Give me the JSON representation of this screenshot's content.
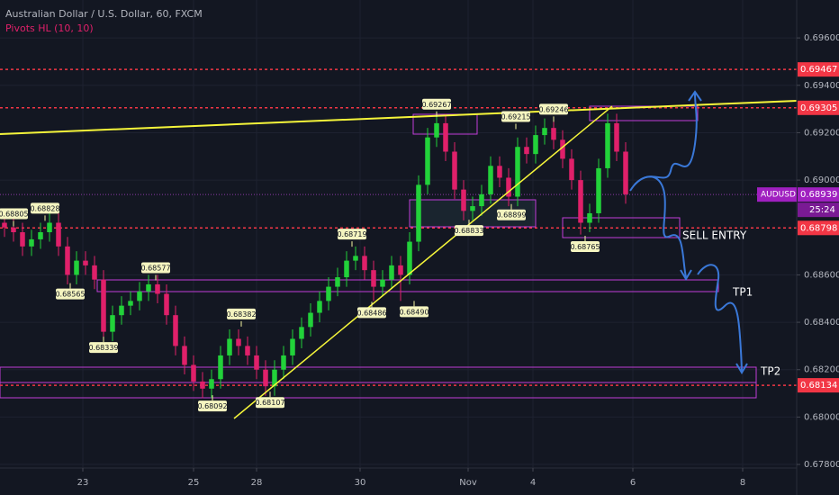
{
  "chart_data": {
    "type": "candlestick",
    "title": "Australian Dollar / U.S. Dollar, 60, FXCM",
    "subtitle": "Pivots HL (10, 10)",
    "up_color": "#22d23a",
    "down_color": "#e0206a",
    "grid": true,
    "xlim": [
      -0.5,
      88
    ],
    "ylim": [
      0.67785,
      0.6976
    ],
    "xticks": [
      {
        "value": 8.7,
        "label": "23"
      },
      {
        "value": 21,
        "label": "25"
      },
      {
        "value": 28,
        "label": "28"
      },
      {
        "value": 39.5,
        "label": "30"
      },
      {
        "value": 51.5,
        "label": "Nov"
      },
      {
        "value": 58.7,
        "label": "4"
      },
      {
        "value": 69.8,
        "label": "6"
      },
      {
        "value": 82,
        "label": "8"
      }
    ],
    "yticks": [
      {
        "value": 0.696,
        "label": "0.69600"
      },
      {
        "value": 0.694,
        "label": "0.69400"
      },
      {
        "value": 0.692,
        "label": "0.69200"
      },
      {
        "value": 0.69,
        "label": "0.69000"
      },
      {
        "value": 0.686,
        "label": "0.68600"
      },
      {
        "value": 0.684,
        "label": "0.68400"
      },
      {
        "value": 0.682,
        "label": "0.68200"
      },
      {
        "value": 0.68,
        "label": "0.68000"
      },
      {
        "value": 0.678,
        "label": "0.67800"
      }
    ],
    "candles": [
      [
        0.6882,
        0.6886,
        0.6876,
        0.688
      ],
      [
        0.688,
        0.6884,
        0.6874,
        0.6878
      ],
      [
        0.6878,
        0.6882,
        0.6868,
        0.6872
      ],
      [
        0.6872,
        0.6879,
        0.6868,
        0.6875
      ],
      [
        0.6875,
        0.6882,
        0.6871,
        0.6878
      ],
      [
        0.6878,
        0.6886,
        0.6874,
        0.6882
      ],
      [
        0.6882,
        0.6886,
        0.6868,
        0.6872
      ],
      [
        0.6872,
        0.6876,
        0.6856,
        0.686
      ],
      [
        0.686,
        0.687,
        0.6856,
        0.6866
      ],
      [
        0.6866,
        0.687,
        0.686,
        0.6864
      ],
      [
        0.6864,
        0.6868,
        0.6854,
        0.6858
      ],
      [
        0.6858,
        0.6862,
        0.6832,
        0.6836
      ],
      [
        0.6836,
        0.6847,
        0.6832,
        0.6843
      ],
      [
        0.6843,
        0.6851,
        0.6839,
        0.6847
      ],
      [
        0.6847,
        0.6853,
        0.6843,
        0.6849
      ],
      [
        0.6849,
        0.6857,
        0.6845,
        0.6853
      ],
      [
        0.6853,
        0.686,
        0.6849,
        0.6856
      ],
      [
        0.6856,
        0.686,
        0.6848,
        0.6852
      ],
      [
        0.6852,
        0.6856,
        0.6839,
        0.6843
      ],
      [
        0.6843,
        0.6847,
        0.6826,
        0.683
      ],
      [
        0.683,
        0.6834,
        0.6818,
        0.6822
      ],
      [
        0.6822,
        0.6826,
        0.6811,
        0.6815
      ],
      [
        0.6815,
        0.6819,
        0.6808,
        0.6812
      ],
      [
        0.6812,
        0.682,
        0.6808,
        0.6816
      ],
      [
        0.6816,
        0.683,
        0.6812,
        0.6826
      ],
      [
        0.6826,
        0.6837,
        0.6822,
        0.6833
      ],
      [
        0.6833,
        0.6837,
        0.6826,
        0.683
      ],
      [
        0.683,
        0.6834,
        0.6822,
        0.6826
      ],
      [
        0.6826,
        0.683,
        0.6816,
        0.682
      ],
      [
        0.682,
        0.6824,
        0.6809,
        0.6813
      ],
      [
        0.6813,
        0.6824,
        0.6809,
        0.682
      ],
      [
        0.682,
        0.683,
        0.6816,
        0.6826
      ],
      [
        0.6826,
        0.6837,
        0.6822,
        0.6833
      ],
      [
        0.6833,
        0.6842,
        0.6829,
        0.6838
      ],
      [
        0.6838,
        0.6848,
        0.6834,
        0.6844
      ],
      [
        0.6844,
        0.6853,
        0.684,
        0.6849
      ],
      [
        0.6849,
        0.6859,
        0.6845,
        0.6855
      ],
      [
        0.6855,
        0.6863,
        0.6851,
        0.6859
      ],
      [
        0.6859,
        0.687,
        0.6855,
        0.6866
      ],
      [
        0.6866,
        0.6872,
        0.6862,
        0.6868
      ],
      [
        0.6868,
        0.6872,
        0.6858,
        0.6862
      ],
      [
        0.6862,
        0.6866,
        0.6849,
        0.6855
      ],
      [
        0.6855,
        0.6862,
        0.6851,
        0.6858
      ],
      [
        0.6858,
        0.6868,
        0.6854,
        0.6864
      ],
      [
        0.6864,
        0.6868,
        0.6849,
        0.686
      ],
      [
        0.686,
        0.6878,
        0.6856,
        0.6874
      ],
      [
        0.6874,
        0.6902,
        0.687,
        0.6898
      ],
      [
        0.6898,
        0.6922,
        0.6894,
        0.6918
      ],
      [
        0.6918,
        0.6928,
        0.6914,
        0.6924
      ],
      [
        0.6924,
        0.6928,
        0.6908,
        0.6912
      ],
      [
        0.6912,
        0.6916,
        0.6892,
        0.6896
      ],
      [
        0.6896,
        0.69,
        0.6883,
        0.6887
      ],
      [
        0.6887,
        0.6893,
        0.6883,
        0.6889
      ],
      [
        0.6889,
        0.6898,
        0.6885,
        0.6894
      ],
      [
        0.6894,
        0.691,
        0.689,
        0.6906
      ],
      [
        0.6906,
        0.691,
        0.6897,
        0.6901
      ],
      [
        0.6901,
        0.6905,
        0.6889,
        0.6893
      ],
      [
        0.6893,
        0.6918,
        0.6889,
        0.6914
      ],
      [
        0.6914,
        0.6918,
        0.6907,
        0.6911
      ],
      [
        0.6911,
        0.6923,
        0.6907,
        0.6919
      ],
      [
        0.6919,
        0.6926,
        0.6915,
        0.6922
      ],
      [
        0.6922,
        0.6926,
        0.6913,
        0.6917
      ],
      [
        0.6917,
        0.6921,
        0.6905,
        0.6909
      ],
      [
        0.6909,
        0.6913,
        0.6896,
        0.69
      ],
      [
        0.69,
        0.6904,
        0.6877,
        0.6882
      ],
      [
        0.6882,
        0.689,
        0.6878,
        0.6886
      ],
      [
        0.6886,
        0.6909,
        0.6882,
        0.6905
      ],
      [
        0.6905,
        0.6928,
        0.6901,
        0.6924
      ],
      [
        0.6924,
        0.6928,
        0.6908,
        0.6912
      ],
      [
        0.6912,
        0.6916,
        0.689,
        0.6894
      ]
    ],
    "pivot_highs": {
      "x": [
        1,
        4.5,
        16.8,
        26.3,
        38.6,
        48,
        56.8,
        61
      ],
      "values": [
        0.68805,
        0.68828,
        0.68577,
        0.68382,
        0.68719,
        0.69267,
        0.69215,
        0.69246
      ]
    },
    "pivot_lows": {
      "x": [
        7.3,
        11,
        23.1,
        29.5,
        40.8,
        45.5,
        51.6,
        56.3,
        64.5
      ],
      "values": [
        0.68565,
        0.68339,
        0.68092,
        0.68107,
        0.68486,
        0.6849,
        0.68833,
        0.68899,
        0.68765
      ],
      "value_labels": [
        "0.68565",
        "0.68339",
        "0.68092",
        "0.68107",
        "0.68486",
        "0.68490",
        "0.68833",
        "0.68899",
        "0.68765"
      ]
    },
    "levels": [
      0.69467,
      0.69305,
      0.68798,
      0.68134
    ],
    "level_color": "#f23645",
    "symbol": "AUDUSD",
    "last_price": 0.68939,
    "countdown": "25:24",
    "annotations": [
      "SELL ENTRY",
      "TP1",
      "TP2"
    ]
  }
}
